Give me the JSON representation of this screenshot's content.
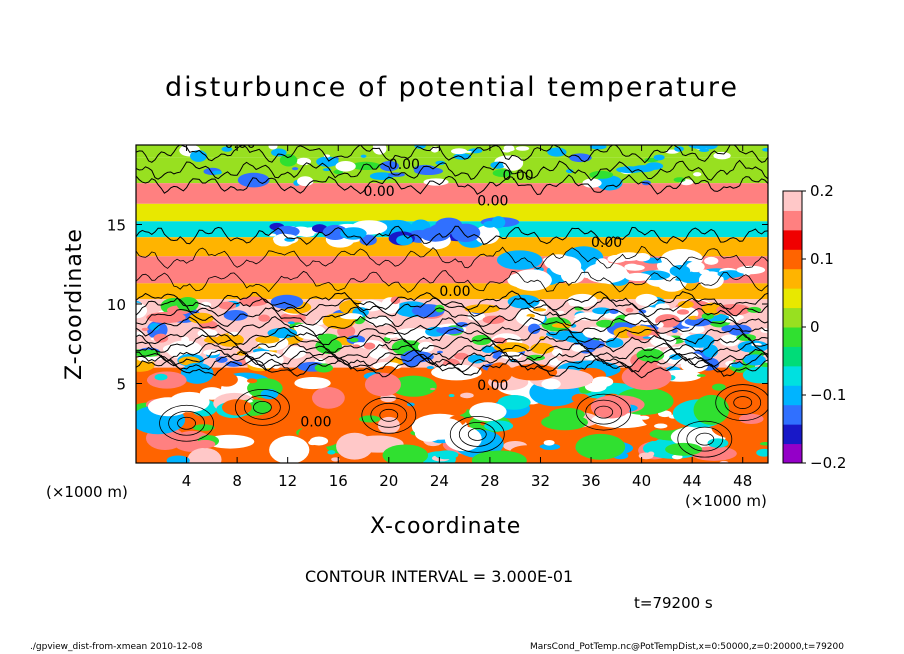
{
  "chart_data": {
    "type": "heatmap",
    "title": "disturbunce of potential temperature",
    "xlabel": "X-coordinate",
    "ylabel": "Z-coordinate",
    "x_unit_left": "(×1000 m)",
    "x_unit_right": "(×1000 m)",
    "xlim": [
      0,
      50
    ],
    "ylim": [
      0,
      20
    ],
    "x_ticks": [
      "4",
      "8",
      "12",
      "16",
      "20",
      "24",
      "28",
      "32",
      "36",
      "40",
      "44",
      "48"
    ],
    "y_ticks": [
      "5",
      "10",
      "15"
    ],
    "colorbar": {
      "range": [
        -0.2,
        0.2
      ],
      "tick_labels": [
        "0.2",
        "0.1",
        "0",
        "−0.1",
        "−0.2"
      ],
      "colors": [
        "#9400c8",
        "#1818c8",
        "#3070ff",
        "#00b4ff",
        "#00e0e0",
        "#00dc78",
        "#30e030",
        "#98e020",
        "#e8e800",
        "#ffb400",
        "#ff6400",
        "#f00000",
        "#ff8080",
        "#ffc8c8"
      ]
    },
    "contour_labels": [
      "0.00",
      "0.00",
      "0.00",
      "0.00",
      "0.00",
      "0.00",
      "0.00",
      "0.00",
      "0.00"
    ],
    "contour_interval_text": "CONTOUR INTERVAL = 3.000E-01",
    "time_text": "t=79200 s",
    "layers": [
      {
        "z": [
          19.2,
          20
        ],
        "value": 0.0
      },
      {
        "z": [
          17.6,
          19.2
        ],
        "value": 0.02
      },
      {
        "z": [
          16.3,
          17.6
        ],
        "value": 0.17
      },
      {
        "z": [
          15.2,
          16.3
        ],
        "value": 0.05
      },
      {
        "z": [
          14.2,
          15.2
        ],
        "value": -0.06
      },
      {
        "z": [
          13.0,
          14.2
        ],
        "value": 0.08
      },
      {
        "z": [
          11.3,
          13.0
        ],
        "value": 0.17
      },
      {
        "z": [
          10.3,
          11.3
        ],
        "value": 0.08
      },
      {
        "z": [
          6.0,
          10.3
        ],
        "value": 0.2
      },
      {
        "z": [
          0,
          6.0
        ],
        "value": 0.1
      }
    ]
  },
  "footer": {
    "left": "./gpview_dist-from-xmean  2010-12-08",
    "right": "MarsCond_PotTemp.nc@PotTempDist,x=0:50000,z=0:20000,t=79200"
  }
}
